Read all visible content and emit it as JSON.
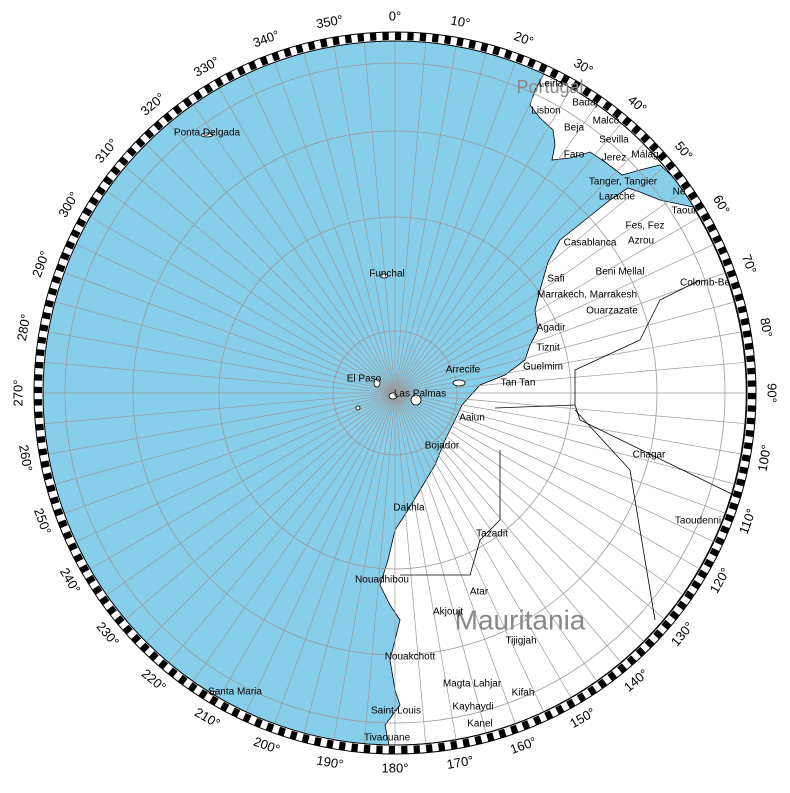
{
  "map": {
    "degree_labels": [
      "0°",
      "10°",
      "20°",
      "30°",
      "40°",
      "50°",
      "60°",
      "70°",
      "80°",
      "90°",
      "100°",
      "110°",
      "120°",
      "130°",
      "140°",
      "150°",
      "160°",
      "170°",
      "180°",
      "190°",
      "200°",
      "210°",
      "220°",
      "230°",
      "240°",
      "250°",
      "260°",
      "270°",
      "280°",
      "290°",
      "300°",
      "310°",
      "320°",
      "330°",
      "340°",
      "350°"
    ],
    "countries": [
      "Portugal",
      "Mauritania"
    ],
    "places": [
      "Leiria",
      "Badaj",
      "Lisbon",
      "Beja",
      "Malco",
      "Sevilla",
      "Faro",
      "Jerez",
      "Málag",
      "Tanger, Tangier",
      "Larache",
      "Ne",
      "Taour",
      "Fes, Fez",
      "Azrou",
      "Casablanca",
      "Beni Mellal",
      "Safi",
      "Colomb-Be",
      "Marrakech, Marrakesh",
      "Ouarzazate",
      "Agadir",
      "Tiznit",
      "Guelmim",
      "Tan Tan",
      "Arrecife",
      "El Paso",
      "Las Palmas",
      "Funchal",
      "Ponta Delgada",
      "Aaiun",
      "Bojador",
      "Chagar",
      "Dakhla",
      "Taoudenni",
      "Tazadit",
      "Nouadhibou",
      "Atar",
      "Akjoujt",
      "Tijigjah",
      "Nouakchott",
      "Magta Lahjar",
      "Kifah",
      "Kayhaydi",
      "Saint-Louis",
      "Kanel",
      "Tivaouane",
      "Santa Maria"
    ]
  }
}
